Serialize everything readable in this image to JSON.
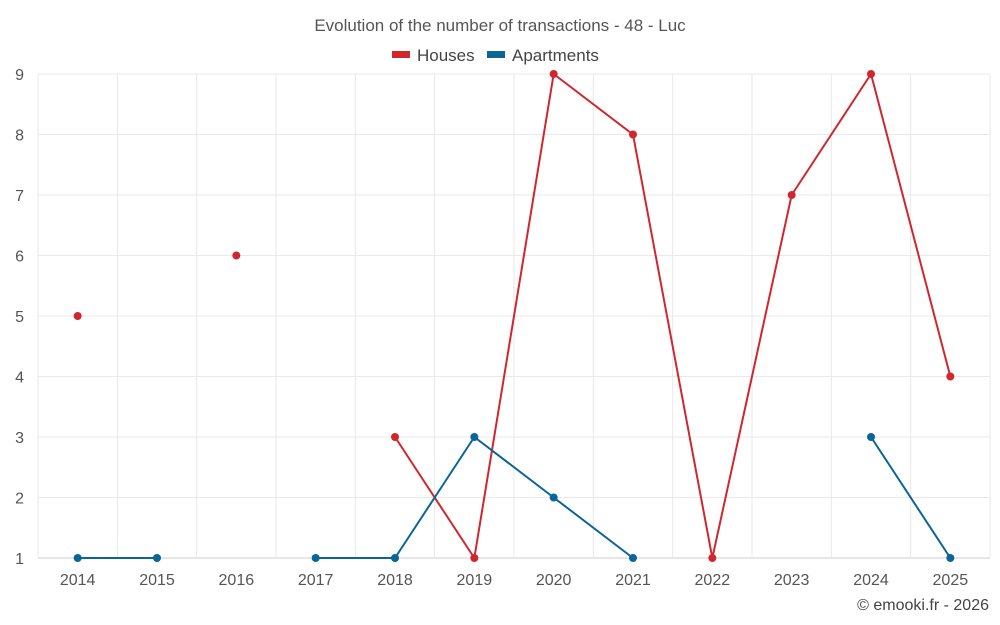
{
  "chart_data": {
    "type": "line",
    "title": "Evolution of the number of transactions - 48 - Luc",
    "categories": [
      "2014",
      "2015",
      "2016",
      "2017",
      "2018",
      "2019",
      "2020",
      "2021",
      "2022",
      "2023",
      "2024",
      "2025"
    ],
    "ylim": [
      1,
      9
    ],
    "yticks": [
      1,
      2,
      3,
      4,
      5,
      6,
      7,
      8,
      9
    ],
    "grid": true,
    "legend_position": "top-center",
    "series": [
      {
        "name": "Houses",
        "color": "#d0272e",
        "values": [
          5,
          null,
          6,
          null,
          3,
          1,
          9,
          8,
          1,
          7,
          9,
          4
        ]
      },
      {
        "name": "Apartments",
        "color": "#0b6597",
        "values": [
          1,
          1,
          null,
          1,
          1,
          3,
          2,
          1,
          null,
          null,
          3,
          1
        ]
      }
    ],
    "credit": "© emooki.fr - 2026"
  }
}
